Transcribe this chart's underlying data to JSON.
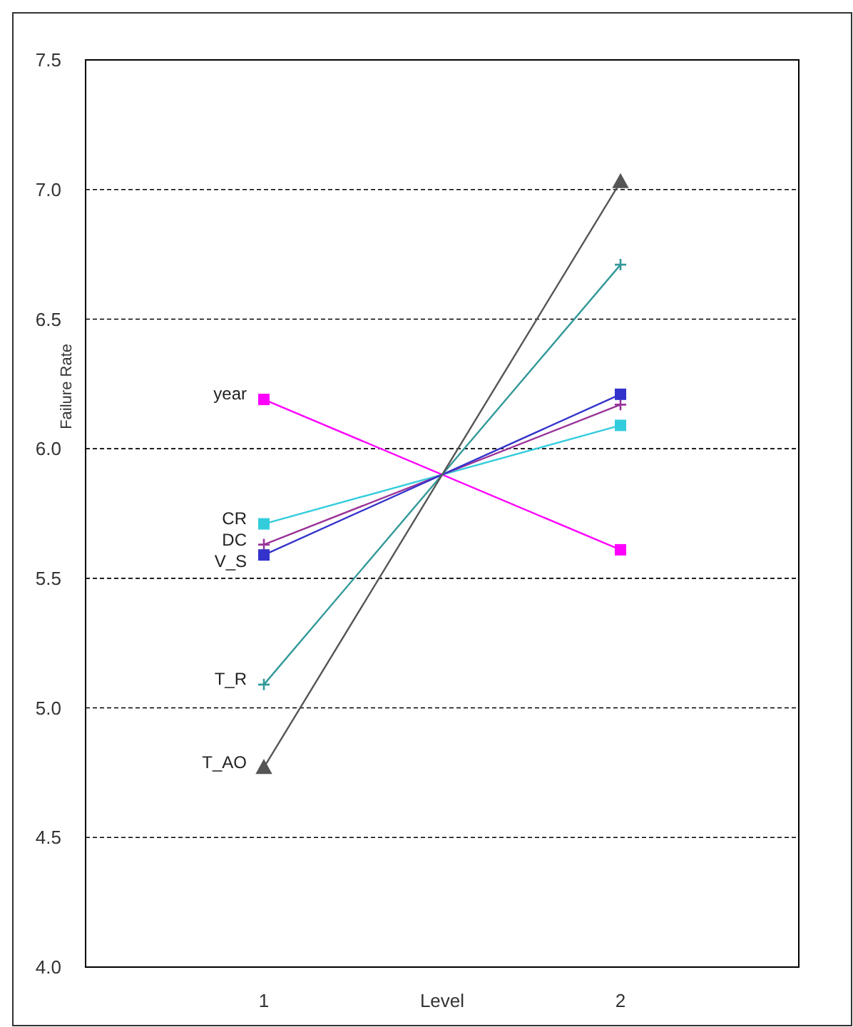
{
  "chart_data": {
    "type": "line",
    "xlabel": "Level",
    "ylabel": "Failure Rate",
    "categories": [
      "1",
      "2"
    ],
    "ylim": [
      4.0,
      7.5
    ],
    "yticks": [
      {
        "value": 4.0,
        "label": "4.0"
      },
      {
        "value": 4.5,
        "label": "4.5"
      },
      {
        "value": 5.0,
        "label": "5.0"
      },
      {
        "value": 5.5,
        "label": "5.5"
      },
      {
        "value": 6.0,
        "label": "6.0"
      },
      {
        "value": 6.5,
        "label": "6.5"
      },
      {
        "value": 7.0,
        "label": "7.0"
      },
      {
        "value": 7.5,
        "label": "7.5"
      }
    ],
    "grid": "y",
    "line_style": "solid",
    "series": [
      {
        "name": "year",
        "color": "#ff00ff",
        "marker": "square",
        "values": [
          6.19,
          5.61
        ]
      },
      {
        "name": "CR",
        "color": "#33ccdd",
        "marker": "square",
        "values": [
          5.71,
          6.09
        ]
      },
      {
        "name": "DC",
        "color": "#993399",
        "marker": "cross",
        "values": [
          5.63,
          6.17
        ]
      },
      {
        "name": "V_S",
        "color": "#3333cc",
        "marker": "square",
        "values": [
          5.59,
          6.21
        ]
      },
      {
        "name": "T_R",
        "color": "#339999",
        "marker": "cross",
        "values": [
          5.09,
          6.71
        ]
      },
      {
        "name": "T_AO",
        "color": "#555555",
        "marker": "triangle",
        "values": [
          4.77,
          7.03
        ]
      }
    ]
  }
}
